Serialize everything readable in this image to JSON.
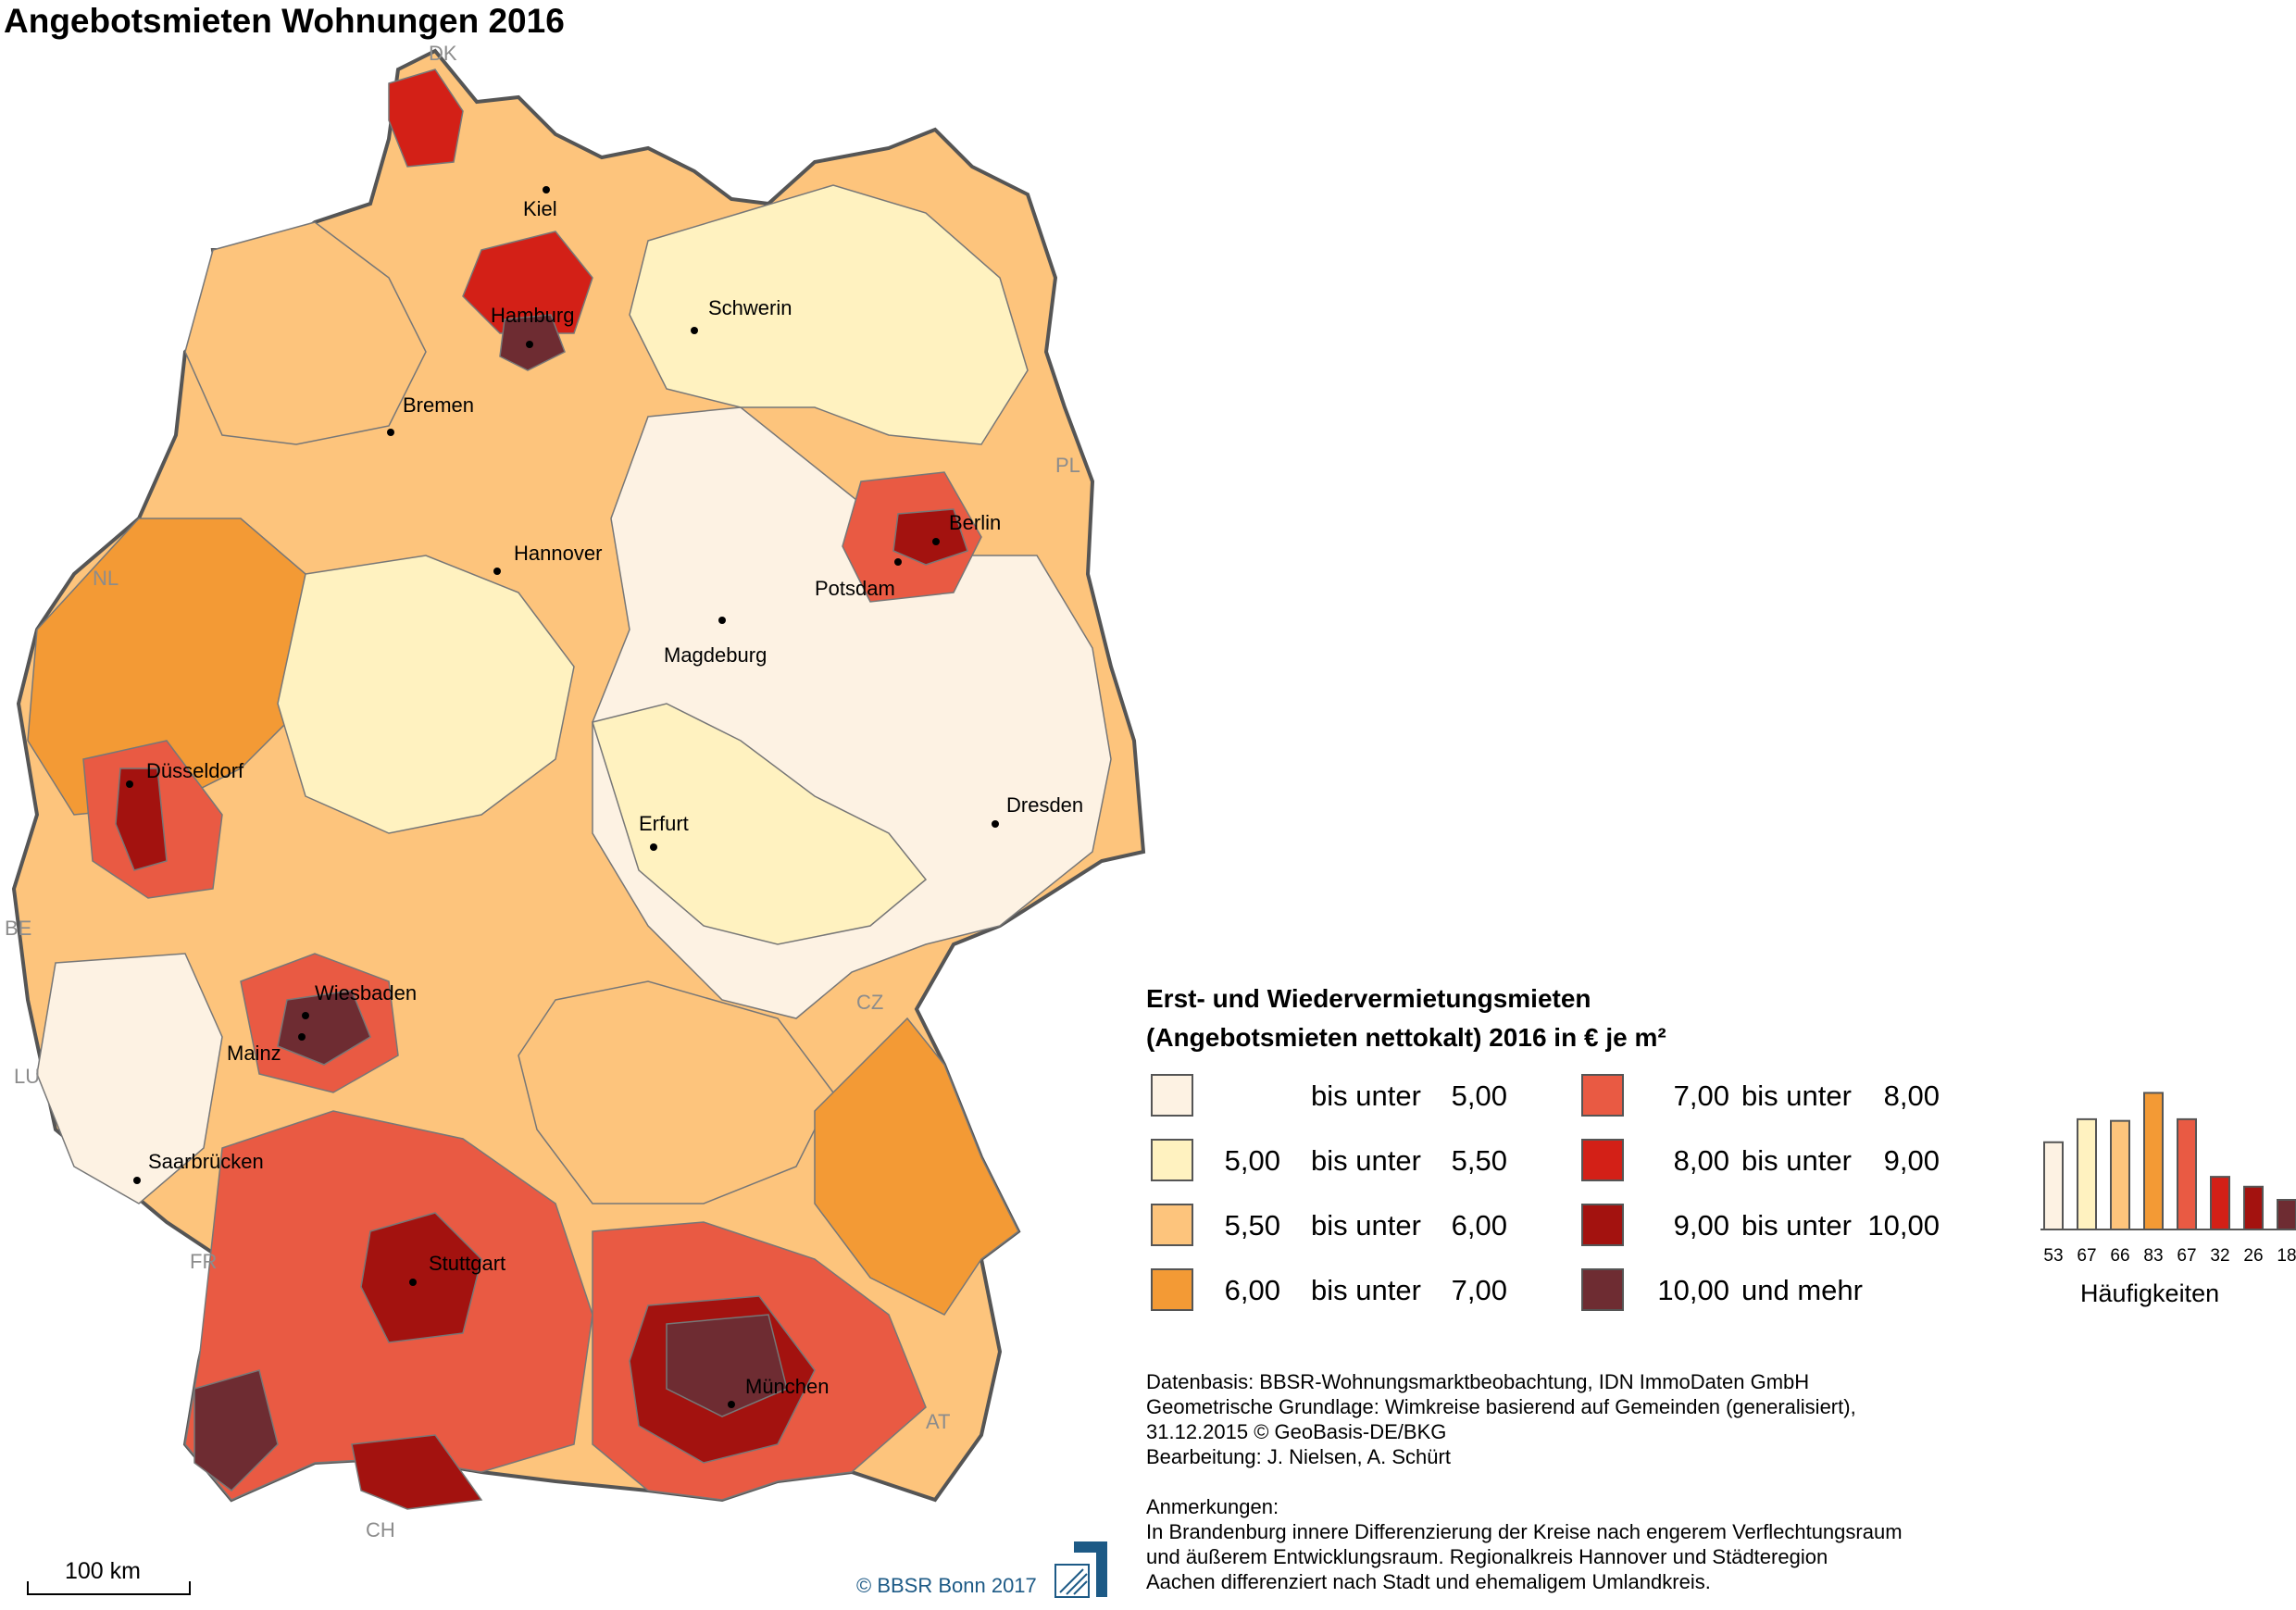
{
  "title": "Angebotsmieten Wohnungen 2016",
  "legend": {
    "title_line1": "Erst- und Wiedervermietungsmieten",
    "title_line2": "(Angebotsmieten nettokalt) 2016 in € je m²",
    "classes": [
      {
        "from": "",
        "connector": "bis unter",
        "to": "5,00",
        "color": "#fdf2e3"
      },
      {
        "from": "5,00",
        "connector": "bis unter",
        "to": "5,50",
        "color": "#fff2c0"
      },
      {
        "from": "5,50",
        "connector": "bis unter",
        "to": "6,00",
        "color": "#fdc47c"
      },
      {
        "from": "6,00",
        "connector": "bis unter",
        "to": "7,00",
        "color": "#f39a35"
      },
      {
        "from": "7,00",
        "connector": "bis unter",
        "to": "8,00",
        "color": "#e95a43"
      },
      {
        "from": "8,00",
        "connector": "bis unter",
        "to": "9,00",
        "color": "#d32017"
      },
      {
        "from": "9,00",
        "connector": "bis unter",
        "to": "10,00",
        "color": "#a3120f"
      },
      {
        "from": "10,00",
        "connector": "und mehr",
        "to": "",
        "color": "#6e2c32"
      }
    ]
  },
  "chart_data": {
    "type": "bar",
    "categories": [
      "bis unter 5,00",
      "5,00 bis unter 5,50",
      "5,50 bis unter 6,00",
      "6,00 bis unter 7,00",
      "7,00 bis unter 8,00",
      "8,00 bis unter 9,00",
      "9,00 bis unter 10,00",
      "10,00 und mehr"
    ],
    "values": [
      53,
      67,
      66,
      83,
      67,
      32,
      26,
      18
    ],
    "value_labels": [
      "53",
      "67",
      "66",
      "83",
      "67",
      "32",
      "26",
      "18"
    ],
    "xlabel": "Häufigkeiten"
  },
  "cities": [
    "Kiel",
    "Hamburg",
    "Schwerin",
    "Bremen",
    "Berlin",
    "Hannover",
    "Potsdam",
    "Magdeburg",
    "Düsseldorf",
    "Dresden",
    "Erfurt",
    "Wiesbaden",
    "Mainz",
    "Saarbrücken",
    "Stuttgart",
    "München"
  ],
  "countries": [
    "DK",
    "PL",
    "NL",
    "BE",
    "LU",
    "CZ",
    "FR",
    "AT",
    "CH"
  ],
  "notes": {
    "line1": "Datenbasis: BBSR-Wohnungsmarktbeobachtung, IDN ImmoDaten GmbH",
    "line2": "Geometrische Grundlage: Wimkreise basierend auf Gemeinden (generalisiert),",
    "line3": "31.12.2015 © GeoBasis-DE/BKG",
    "line4": "Bearbeitung: J. Nielsen, A. Schürt",
    "line5": "Anmerkungen:",
    "line6": "In Brandenburg innere Differenzierung der Kreise nach engerem Verflechtungsraum",
    "line7": "und äußerem Entwicklungsraum. Regionalkreis Hannover und Städteregion",
    "line8": "Aachen differenziert nach Stadt und ehemaligem Umlandkreis."
  },
  "scale": "100 km",
  "copyright": "© BBSR Bonn 2017",
  "logo": "bbsr-logo",
  "colors": {
    "border": "#555555",
    "country_label": "#8c8c8c",
    "copyright": "#1d5a86"
  }
}
